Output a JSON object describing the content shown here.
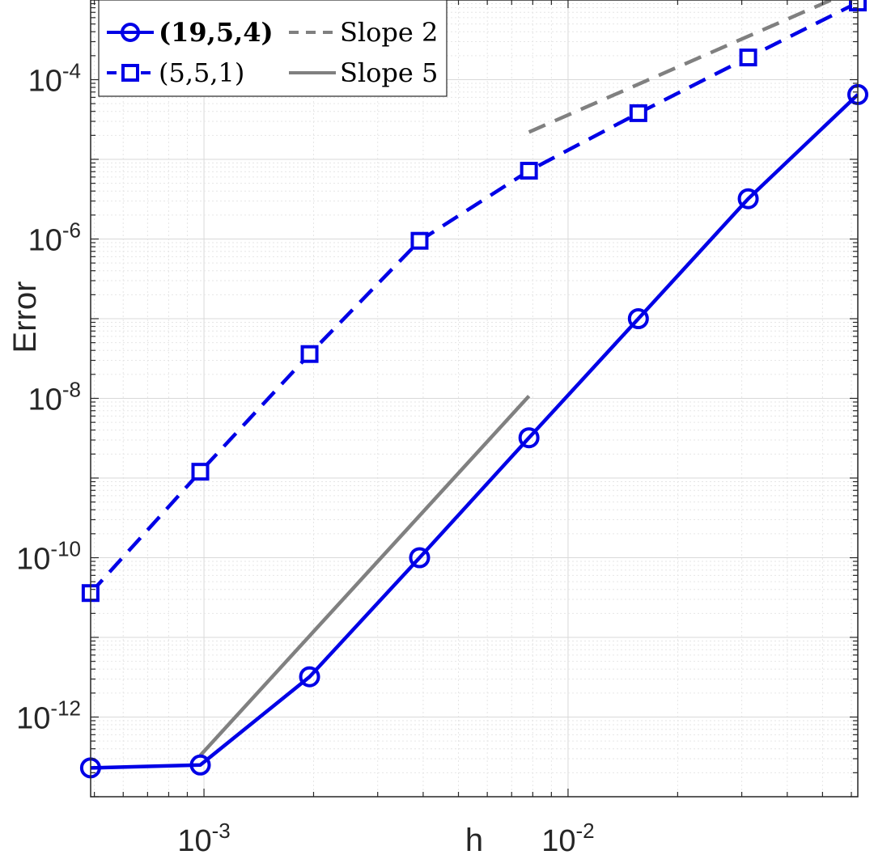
{
  "chart_data": {
    "type": "line",
    "xscale": "log",
    "yscale": "log",
    "xlabel": "h",
    "ylabel": "Error",
    "xlim": [
      0.0004883,
      0.0625
    ],
    "ylim": [
      1e-13,
      0.001
    ],
    "grid": true,
    "minor_grid": true,
    "legend_position": "top-left",
    "x_ticks": [
      {
        "base": "10",
        "exp": "-3",
        "value": 0.001
      },
      {
        "base": "10",
        "exp": "-2",
        "value": 0.01
      }
    ],
    "y_ticks": [
      {
        "base": "10",
        "exp": "-4",
        "value": 0.0001
      },
      {
        "base": "10",
        "exp": "-6",
        "value": 1e-06
      },
      {
        "base": "10",
        "exp": "-8",
        "value": 1e-08
      },
      {
        "base": "10",
        "exp": "-10",
        "value": 1e-10
      },
      {
        "base": "10",
        "exp": "-12",
        "value": 1e-12
      }
    ],
    "series": [
      {
        "name": "(19,5,4)",
        "bold": true,
        "color": "#0000e6",
        "marker": "circle",
        "line": "solid",
        "x": [
          0.000488,
          0.000977,
          0.00195,
          0.00391,
          0.00781,
          0.0156,
          0.03125,
          0.0625
        ],
        "y": [
          2.3e-13,
          2.5e-13,
          3.2e-12,
          1e-10,
          3.2e-09,
          1e-07,
          3.2e-06,
          6.5e-05
        ]
      },
      {
        "name": "(5,5,1)",
        "bold": false,
        "color": "#0000e6",
        "marker": "square",
        "line": "dashed",
        "x": [
          0.000488,
          0.000977,
          0.00195,
          0.00391,
          0.00781,
          0.0156,
          0.03125,
          0.0625
        ],
        "y": [
          3.6e-11,
          1.2e-09,
          3.6e-08,
          9.5e-07,
          7.2e-06,
          3.8e-05,
          0.00019,
          0.00093
        ]
      },
      {
        "name": "Slope 2",
        "bold": false,
        "color": "#808080",
        "marker": "none",
        "line": "dashed",
        "x": [
          0.00781,
          0.0625
        ],
        "y": [
          2.2e-05,
          0.0014
        ]
      },
      {
        "name": "Slope 5",
        "bold": false,
        "color": "#808080",
        "marker": "none",
        "line": "solid",
        "x": [
          0.000977,
          0.00781
        ],
        "y": [
          3.3e-13,
          1.07e-08
        ]
      }
    ]
  }
}
